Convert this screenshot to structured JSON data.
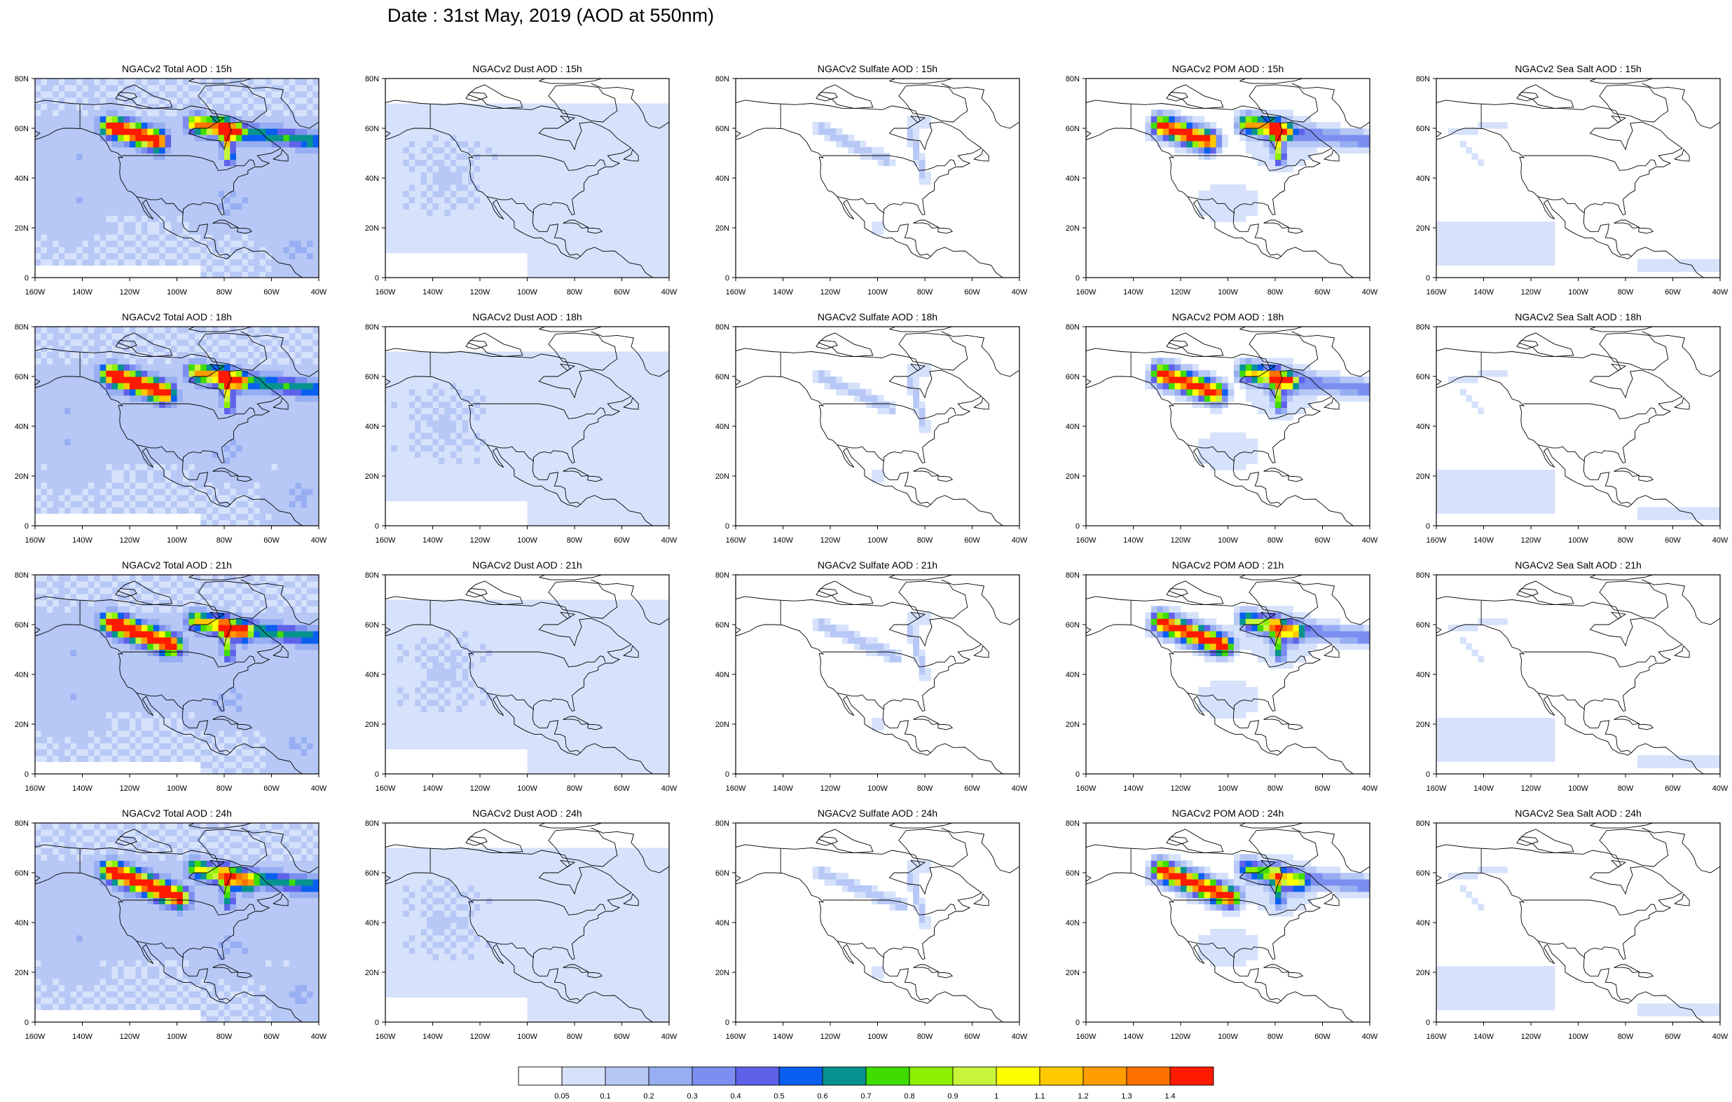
{
  "title": "Date : 31st May, 2019 (AOD at 550nm)",
  "columns": [
    "Total",
    "Dust",
    "Sulfate",
    "POM",
    "SeaSalt"
  ],
  "rows": [
    "15h",
    "18h",
    "21h",
    "24h"
  ],
  "panels": [
    [
      "NGACv2 Total AOD : 15h",
      "NGACv2 Dust AOD : 15h",
      "NGACv2 Sulfate AOD : 15h",
      "NGACv2 POM AOD : 15h",
      "NGACv2 Sea Salt AOD : 15h"
    ],
    [
      "NGACv2 Total AOD : 18h",
      "NGACv2 Dust AOD : 18h",
      "NGACv2 Sulfate AOD : 18h",
      "NGACv2 POM AOD : 18h",
      "NGACv2 Sea Salt AOD : 18h"
    ],
    [
      "NGACv2 Total AOD : 21h",
      "NGACv2 Dust AOD : 21h",
      "NGACv2 Sulfate AOD : 21h",
      "NGACv2 POM AOD : 21h",
      "NGACv2 Sea Salt AOD : 21h"
    ],
    [
      "NGACv2 Total AOD : 24h",
      "NGACv2 Dust AOD : 24h",
      "NGACv2 Sulfate AOD : 24h",
      "NGACv2 POM AOD : 24h",
      "NGACv2 Sea Salt  AOD : 24h"
    ]
  ],
  "axes": {
    "lon_ticks": [
      "160W",
      "140W",
      "120W",
      "100W",
      "80W",
      "60W",
      "40W"
    ],
    "lat_ticks": [
      "0",
      "20N",
      "40N",
      "60N",
      "80N"
    ],
    "lon_range": [
      -160,
      -40
    ],
    "lat_range": [
      0,
      80
    ]
  },
  "colorbar": {
    "labels": [
      "0.05",
      "0.1",
      "0.2",
      "0.3",
      "0.4",
      "0.5",
      "0.6",
      "0.7",
      "0.8",
      "0.9",
      "1",
      "1.1",
      "1.2",
      "1.3",
      "1.4"
    ],
    "colors": [
      "#ffffff",
      "#d6e2fb",
      "#b7c8f6",
      "#97aef2",
      "#7c8ff0",
      "#5f62e9",
      "#0a5ff0",
      "#06938f",
      "#3fdc00",
      "#8cf000",
      "#c8f43c",
      "#ffff00",
      "#ffc800",
      "#ff9c00",
      "#ff7200",
      "#ff1a00"
    ]
  },
  "chart_data": {
    "type": "heatmap",
    "title": "Date : 31st May, 2019 (AOD at 550nm)",
    "variable": "AOD at 550nm",
    "x": "longitude",
    "y": "latitude",
    "xlim": [
      -160,
      -40
    ],
    "ylim": [
      0,
      80
    ],
    "features": [
      {
        "name": "smoke_plume_west",
        "center": [
          -118,
          60
        ],
        "peak_aod": {
          "15h": 1.5,
          "18h": 1.5,
          "21h": 1.5,
          "24h": 1.5
        }
      },
      {
        "name": "smoke_plume_east",
        "center": [
          -78,
          58
        ],
        "peak_aod": {
          "15h": 1.3,
          "18h": 1.2,
          "21h": 1.1,
          "24h": 1.0
        }
      }
    ],
    "component_peak_aod": {
      "Total": 1.5,
      "Dust": 0.15,
      "Sulfate": 0.3,
      "POM": 1.5,
      "SeaSalt": 0.1
    }
  }
}
